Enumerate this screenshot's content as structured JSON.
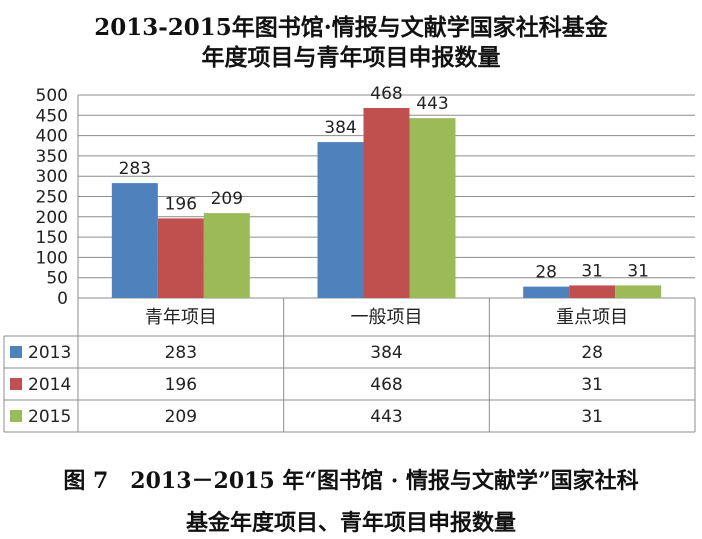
{
  "chart_data": {
    "type": "bar",
    "title": [
      "2013-2015年图书馆·情报与文献学国家社科基金",
      "年度项目与青年项目申报数量"
    ],
    "categories": [
      "青年项目",
      "一般项目",
      "重点项目"
    ],
    "series": [
      {
        "name": "2013",
        "values": [
          283,
          384,
          28
        ],
        "color": "#4f81bd"
      },
      {
        "name": "2014",
        "values": [
          196,
          468,
          31
        ],
        "color": "#c0504d"
      },
      {
        "name": "2015",
        "values": [
          209,
          443,
          31
        ],
        "color": "#9bbb59"
      }
    ],
    "ylim": [
      0,
      500
    ],
    "yticks": [
      0,
      50,
      100,
      150,
      200,
      250,
      300,
      350,
      400,
      450,
      500
    ],
    "grid": true,
    "legend": "data-table-left",
    "data_table": true
  },
  "caption": {
    "line1": "图 7　2013－2015 年“图书馆 · 情报与文献学”国家社科",
    "line2": "基金年度项目、青年项目申报数量"
  }
}
